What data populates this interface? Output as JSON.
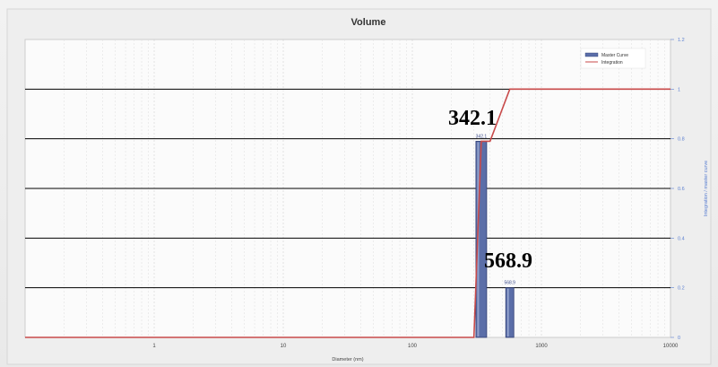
{
  "chart_data": {
    "type": "bar",
    "title": "Volume",
    "xlabel": "Diameter (nm)",
    "ylabel": "Integration / master curve",
    "x_scale": "log",
    "xlim": [
      0.1,
      10000
    ],
    "ylim": [
      0,
      1.2
    ],
    "x_ticks": [
      "1",
      "10",
      "100",
      "1000",
      "10000"
    ],
    "y_ticks": [
      "0",
      "0.2",
      "0.4",
      "0.6",
      "0.8",
      "1",
      "1.2"
    ],
    "grid": true,
    "legend_position": "top-right",
    "series": [
      {
        "name": "Master Curve",
        "type": "bar",
        "color": "#5b6ea8",
        "x": [
          342.1,
          568.9
        ],
        "values": [
          0.79,
          0.2
        ],
        "labels": [
          "342.1",
          "568.9"
        ]
      },
      {
        "name": "Integration",
        "type": "step-line",
        "color": "#c84a4a",
        "x": [
          0.1,
          300,
          342.1,
          400,
          568.9,
          10000
        ],
        "values": [
          0,
          0,
          0.79,
          0.79,
          1,
          1
        ]
      }
    ],
    "annotations": [
      "342.1",
      "568.9"
    ]
  }
}
